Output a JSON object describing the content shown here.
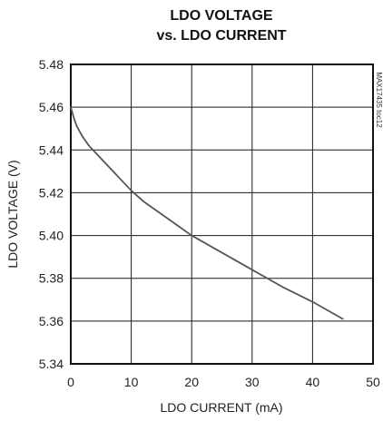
{
  "chart_data": {
    "type": "line",
    "title_lines": [
      "LDO VOLTAGE",
      "vs. LDO CURRENT"
    ],
    "xlabel": "LDO CURRENT (mA)",
    "ylabel": "LDO VOLTAGE (V)",
    "side_label": "MAX17435 toc12",
    "xlim": [
      0,
      50
    ],
    "ylim": [
      5.34,
      5.48
    ],
    "x_ticks": [
      0,
      10,
      20,
      30,
      40,
      50
    ],
    "y_ticks": [
      5.34,
      5.36,
      5.38,
      5.4,
      5.42,
      5.44,
      5.46,
      5.48
    ],
    "x_tick_labels": [
      "0",
      "10",
      "20",
      "30",
      "40",
      "50"
    ],
    "y_tick_labels": [
      "5.34",
      "5.36",
      "5.38",
      "5.40",
      "5.42",
      "5.44",
      "5.46",
      "5.48"
    ],
    "grid": true,
    "series": [
      {
        "color": "#555555",
        "x": [
          0,
          0.5,
          1,
          2,
          3,
          4,
          5,
          6,
          8,
          10,
          12,
          15,
          18,
          20,
          25,
          30,
          35,
          40,
          45
        ],
        "y": [
          5.46,
          5.455,
          5.451,
          5.446,
          5.442,
          5.439,
          5.436,
          5.433,
          5.427,
          5.421,
          5.416,
          5.41,
          5.404,
          5.4,
          5.392,
          5.384,
          5.376,
          5.369,
          5.361
        ]
      }
    ]
  }
}
